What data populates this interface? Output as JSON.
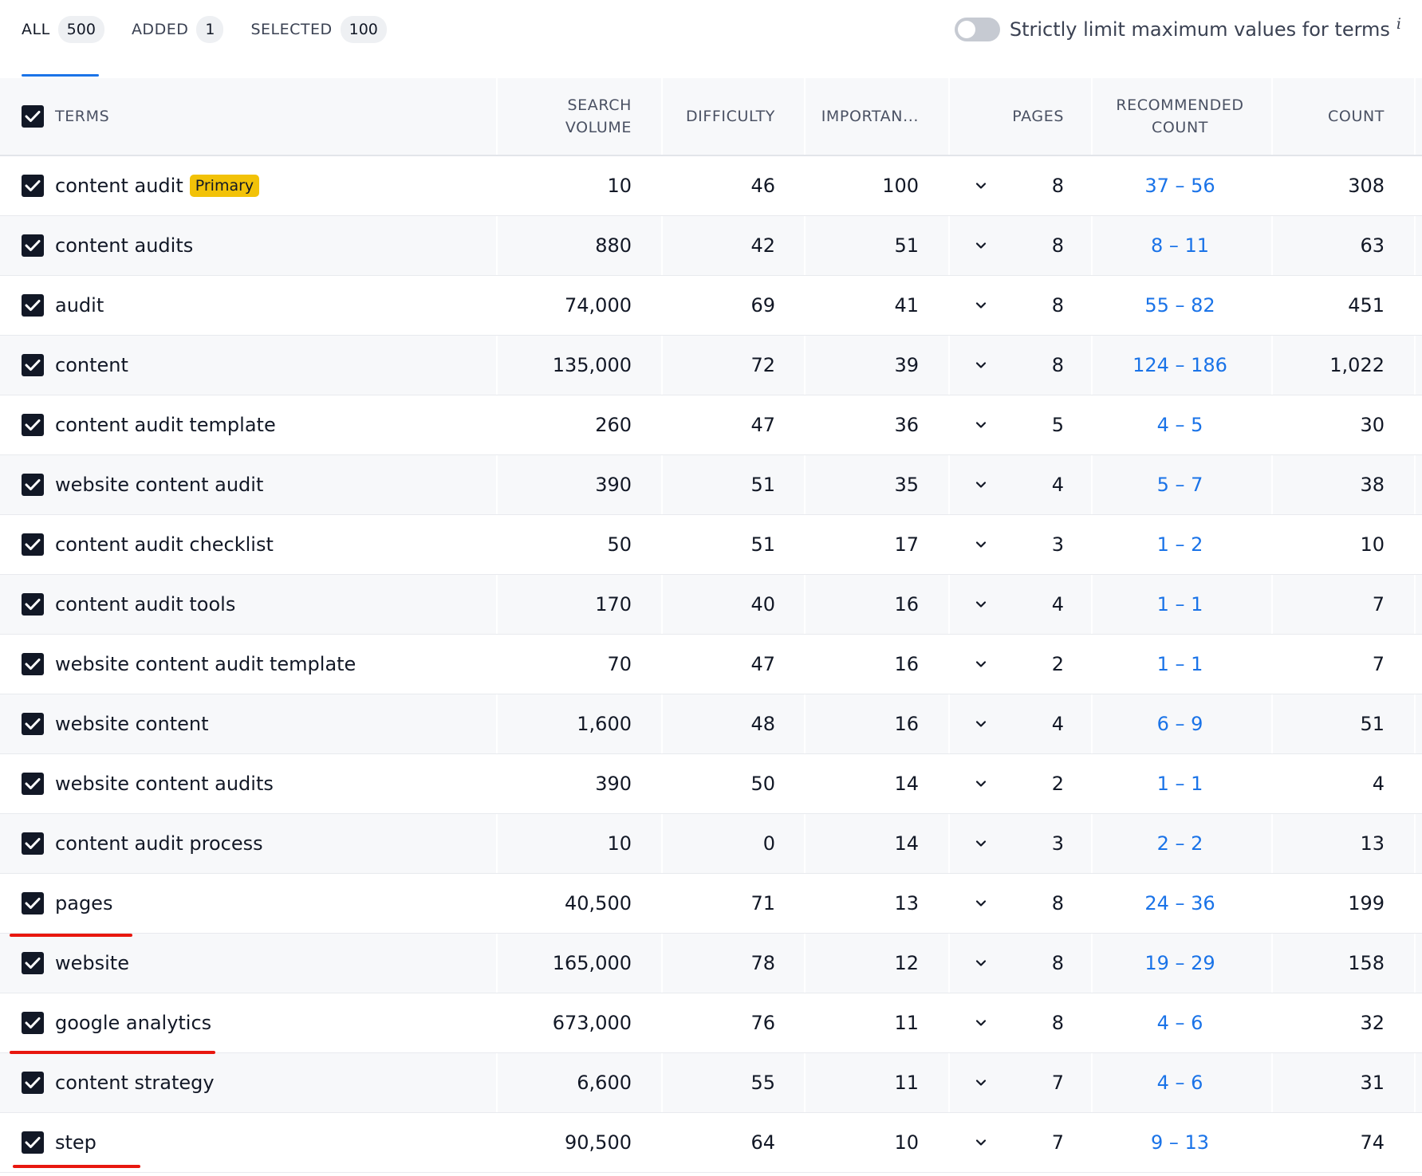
{
  "tabs": [
    {
      "label": "ALL",
      "count": "500"
    },
    {
      "label": "ADDED",
      "count": "1"
    },
    {
      "label": "SELECTED",
      "count": "100"
    }
  ],
  "toggle": {
    "label": "Strictly limit maximum values for terms",
    "info": "i",
    "state": "off"
  },
  "columns": {
    "terms": "TERMS",
    "volume_1": "SEARCH",
    "volume_2": "VOLUME",
    "difficulty": "DIFFICULTY",
    "importance": "IMPORTAN...",
    "pages": "PAGES",
    "recommended_1": "RECOMMENDED",
    "recommended_2": "COUNT",
    "count": "COUNT"
  },
  "badge": {
    "primary": "Primary"
  },
  "rows": [
    {
      "term": "content audit",
      "volume": "10",
      "difficulty": "46",
      "importance": "100",
      "pages": "8",
      "recommended": "37 – 56",
      "count": "308"
    },
    {
      "term": "content audits",
      "volume": "880",
      "difficulty": "42",
      "importance": "51",
      "pages": "8",
      "recommended": "8 – 11",
      "count": "63"
    },
    {
      "term": "audit",
      "volume": "74,000",
      "difficulty": "69",
      "importance": "41",
      "pages": "8",
      "recommended": "55 – 82",
      "count": "451"
    },
    {
      "term": "content",
      "volume": "135,000",
      "difficulty": "72",
      "importance": "39",
      "pages": "8",
      "recommended": "124 – 186",
      "count": "1,022"
    },
    {
      "term": "content audit template",
      "volume": "260",
      "difficulty": "47",
      "importance": "36",
      "pages": "5",
      "recommended": "4 – 5",
      "count": "30"
    },
    {
      "term": "website content audit",
      "volume": "390",
      "difficulty": "51",
      "importance": "35",
      "pages": "4",
      "recommended": "5 – 7",
      "count": "38"
    },
    {
      "term": "content audit checklist",
      "volume": "50",
      "difficulty": "51",
      "importance": "17",
      "pages": "3",
      "recommended": "1 – 2",
      "count": "10"
    },
    {
      "term": "content audit tools",
      "volume": "170",
      "difficulty": "40",
      "importance": "16",
      "pages": "4",
      "recommended": "1 – 1",
      "count": "7"
    },
    {
      "term": "website content audit template",
      "volume": "70",
      "difficulty": "47",
      "importance": "16",
      "pages": "2",
      "recommended": "1 – 1",
      "count": "7"
    },
    {
      "term": "website content",
      "volume": "1,600",
      "difficulty": "48",
      "importance": "16",
      "pages": "4",
      "recommended": "6 – 9",
      "count": "51"
    },
    {
      "term": "website content audits",
      "volume": "390",
      "difficulty": "50",
      "importance": "14",
      "pages": "2",
      "recommended": "1 – 1",
      "count": "4"
    },
    {
      "term": "content audit process",
      "volume": "10",
      "difficulty": "0",
      "importance": "14",
      "pages": "3",
      "recommended": "2 – 2",
      "count": "13"
    },
    {
      "term": "pages",
      "volume": "40,500",
      "difficulty": "71",
      "importance": "13",
      "pages": "8",
      "recommended": "24 – 36",
      "count": "199"
    },
    {
      "term": "website",
      "volume": "165,000",
      "difficulty": "78",
      "importance": "12",
      "pages": "8",
      "recommended": "19 – 29",
      "count": "158"
    },
    {
      "term": "google analytics",
      "volume": "673,000",
      "difficulty": "76",
      "importance": "11",
      "pages": "8",
      "recommended": "4 – 6",
      "count": "32"
    },
    {
      "term": "content strategy",
      "volume": "6,600",
      "difficulty": "55",
      "importance": "11",
      "pages": "7",
      "recommended": "4 – 6",
      "count": "31"
    },
    {
      "term": "step",
      "volume": "90,500",
      "difficulty": "64",
      "importance": "10",
      "pages": "7",
      "recommended": "9 – 13",
      "count": "74"
    }
  ],
  "colors": {
    "accent": "#1a73e8",
    "primary_badge": "#f2c208",
    "annotation": "#e8170f"
  }
}
